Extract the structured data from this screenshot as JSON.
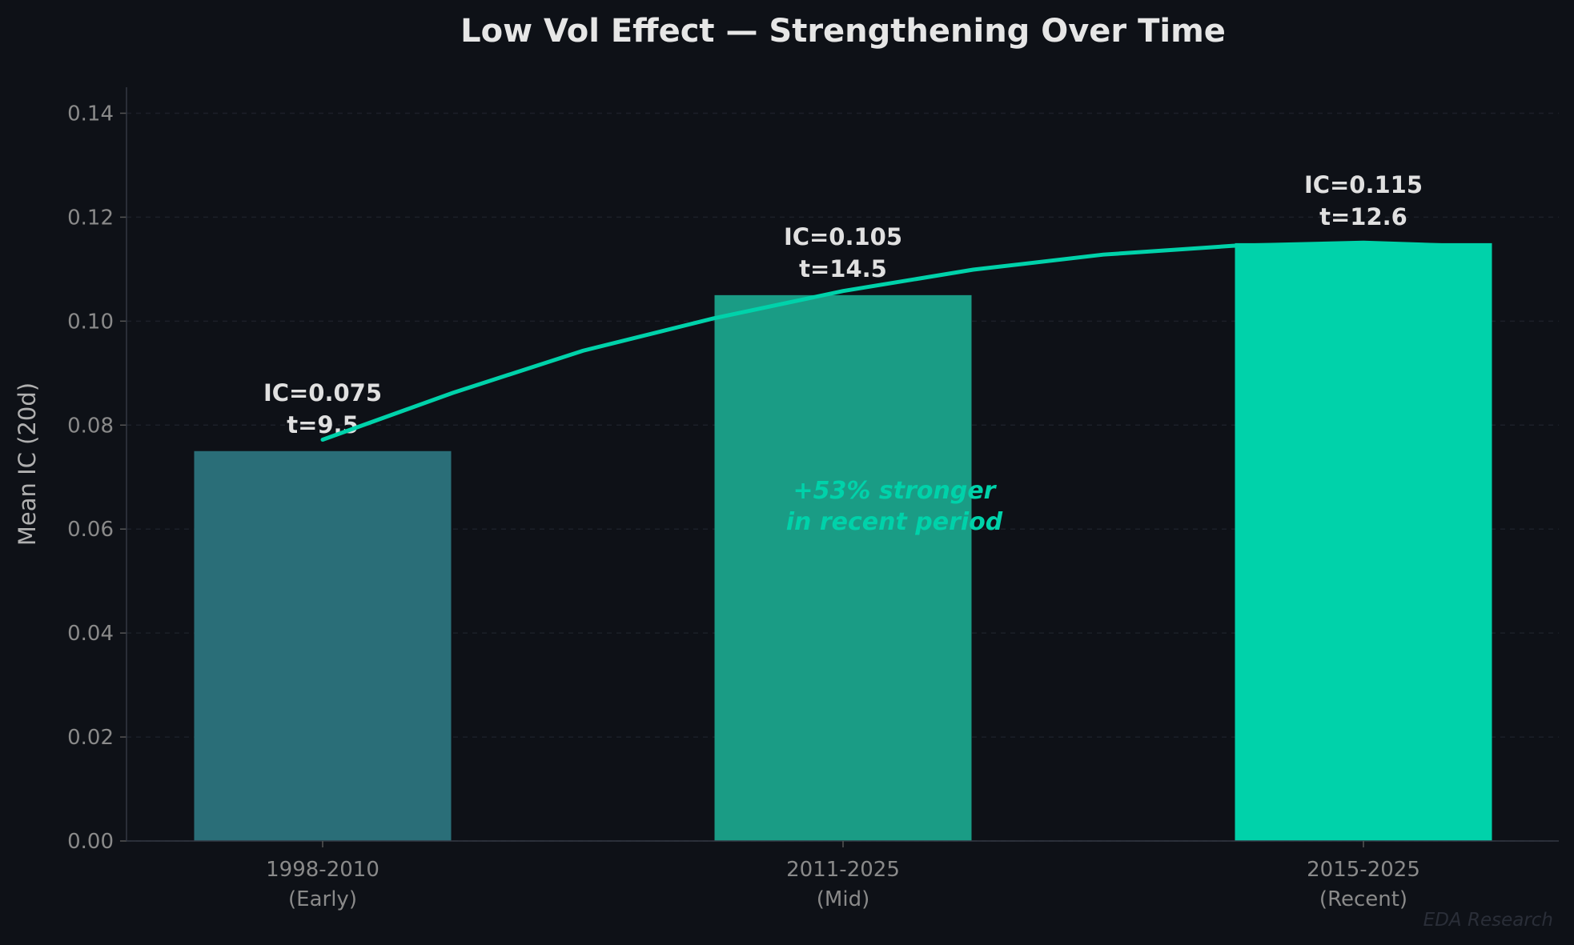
{
  "chart_data": {
    "type": "bar",
    "title": "Low Vol Effect — Strengthening Over Time",
    "xlabel": "",
    "ylabel": "Mean IC (20d)",
    "ylim": [
      0,
      0.145
    ],
    "yticks": [
      "0.00",
      "0.02",
      "0.04",
      "0.06",
      "0.08",
      "0.10",
      "0.12",
      "0.14"
    ],
    "grid": true,
    "categories": [
      {
        "line1": "1998-2010",
        "line2": "(Early)"
      },
      {
        "line1": "2011-2025",
        "line2": "(Mid)"
      },
      {
        "line1": "2015-2025",
        "line2": "(Recent)"
      }
    ],
    "values": [
      0.075,
      0.105,
      0.115
    ],
    "colors": [
      "#2a6e78",
      "#1a9c85",
      "#00d2aa"
    ],
    "data_labels": [
      {
        "ic": "IC=0.075",
        "t": "t=9.5"
      },
      {
        "ic": "IC=0.105",
        "t": "t=14.5"
      },
      {
        "ic": "IC=0.115",
        "t": "t=12.6"
      }
    ],
    "trend": {
      "color": "#00d2aa",
      "x": [
        0,
        0.25,
        0.5,
        0.75,
        1,
        1.25,
        1.5,
        1.75,
        2,
        2.18
      ],
      "y": [
        0.0772,
        0.0862,
        0.0943,
        0.1005,
        0.1058,
        0.1099,
        0.1128,
        0.1145,
        0.1151,
        0.1145
      ]
    },
    "annotation": {
      "line1": "+53% stronger",
      "line2": "in recent period",
      "color": "#00d2aa"
    }
  },
  "watermark": "EDA Research",
  "background": "#0e1117"
}
